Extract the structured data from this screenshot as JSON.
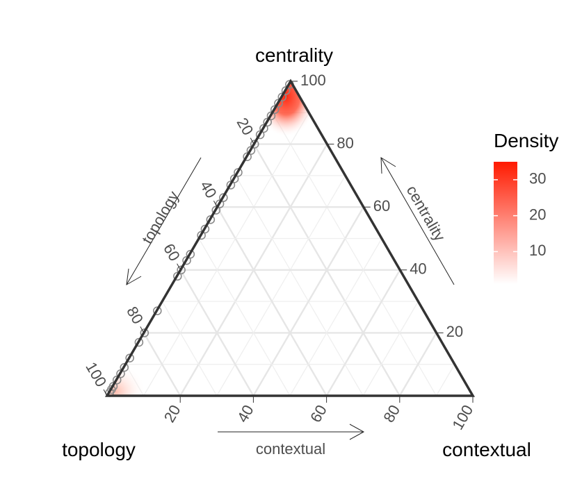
{
  "chart_data": {
    "type": "ternary-density",
    "vertices": {
      "top": "centrality",
      "left": "topology",
      "right": "contextual"
    },
    "axis_arrow_labels": {
      "left": "topology",
      "right": "centrality",
      "bottom": "contextual"
    },
    "ticks": [
      "20",
      "40",
      "60",
      "80",
      "100"
    ],
    "tick_values": [
      20,
      40,
      60,
      80,
      100
    ],
    "grid_step": 10,
    "legend": {
      "title": "Density",
      "labels": [
        "10",
        "20",
        "30"
      ],
      "values": [
        10,
        20,
        30
      ],
      "range": [
        1,
        35
      ],
      "color_low": "#ffffff",
      "color_high": "#ff0000"
    },
    "density_peaks": [
      {
        "centrality": 96,
        "topology": 4,
        "contextual": 0,
        "density": 35
      },
      {
        "centrality": 1,
        "topology": 98,
        "contextual": 1,
        "density": 6
      }
    ],
    "points": [
      {
        "centrality": 99,
        "topology": 1,
        "contextual": 0
      },
      {
        "centrality": 97,
        "topology": 3,
        "contextual": 0
      },
      {
        "centrality": 95,
        "topology": 5,
        "contextual": 0
      },
      {
        "centrality": 93,
        "topology": 7,
        "contextual": 0
      },
      {
        "centrality": 91,
        "topology": 9,
        "contextual": 0
      },
      {
        "centrality": 89,
        "topology": 11,
        "contextual": 0
      },
      {
        "centrality": 87,
        "topology": 13,
        "contextual": 0
      },
      {
        "centrality": 85,
        "topology": 15,
        "contextual": 0
      },
      {
        "centrality": 83,
        "topology": 17,
        "contextual": 0
      },
      {
        "centrality": 80,
        "topology": 20,
        "contextual": 0
      },
      {
        "centrality": 78,
        "topology": 22,
        "contextual": 0
      },
      {
        "centrality": 76,
        "topology": 24,
        "contextual": 0
      },
      {
        "centrality": 71,
        "topology": 29,
        "contextual": 0
      },
      {
        "centrality": 69,
        "topology": 31,
        "contextual": 0
      },
      {
        "centrality": 67,
        "topology": 33,
        "contextual": 0
      },
      {
        "centrality": 63,
        "topology": 37,
        "contextual": 0
      },
      {
        "centrality": 61,
        "topology": 39,
        "contextual": 0
      },
      {
        "centrality": 59,
        "topology": 41,
        "contextual": 0
      },
      {
        "centrality": 56,
        "topology": 44,
        "contextual": 0
      },
      {
        "centrality": 53,
        "topology": 47,
        "contextual": 0
      },
      {
        "centrality": 51,
        "topology": 49,
        "contextual": 0
      },
      {
        "centrality": 45,
        "topology": 55,
        "contextual": 0
      },
      {
        "centrality": 43,
        "topology": 57,
        "contextual": 0
      },
      {
        "centrality": 40,
        "topology": 60,
        "contextual": 0
      },
      {
        "centrality": 38,
        "topology": 62,
        "contextual": 0
      },
      {
        "centrality": 27,
        "topology": 73,
        "contextual": 0
      },
      {
        "centrality": 20,
        "topology": 80,
        "contextual": 0
      },
      {
        "centrality": 17,
        "topology": 83,
        "contextual": 0
      },
      {
        "centrality": 12,
        "topology": 88,
        "contextual": 0
      },
      {
        "centrality": 9,
        "topology": 91,
        "contextual": 0
      },
      {
        "centrality": 7,
        "topology": 93,
        "contextual": 0
      },
      {
        "centrality": 5,
        "topology": 95,
        "contextual": 0
      },
      {
        "centrality": 3,
        "topology": 97,
        "contextual": 0
      },
      {
        "centrality": 2,
        "topology": 98,
        "contextual": 0
      },
      {
        "centrality": 1,
        "topology": 99,
        "contextual": 0
      }
    ]
  }
}
